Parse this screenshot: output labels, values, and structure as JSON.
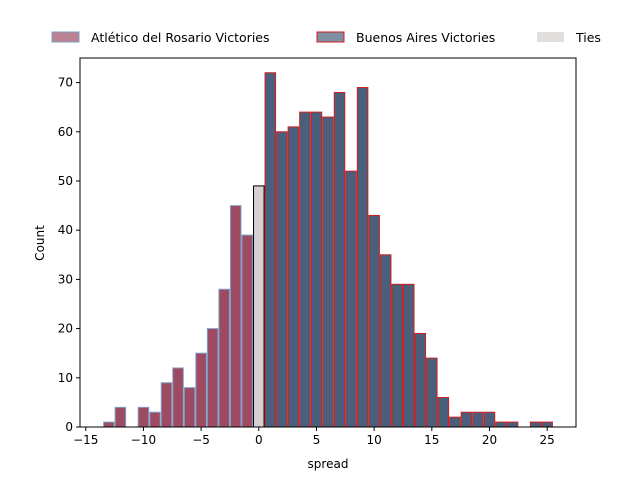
{
  "chart_data": {
    "type": "bar",
    "xlabel": "spread",
    "ylabel": "Count",
    "xlim": [
      -15.5,
      27.5
    ],
    "ylim": [
      0,
      75
    ],
    "xticks": [
      -15,
      -10,
      -5,
      0,
      5,
      10,
      15,
      20,
      25
    ],
    "yticks": [
      0,
      10,
      20,
      30,
      40,
      50,
      60,
      70
    ],
    "bin_width": 1,
    "grid": false,
    "legend_position": "top, outside plot, single row",
    "series": [
      {
        "name": "Atlético del Rosario Victories",
        "fill": "#9e4a62",
        "edge": "#7fa2c4",
        "x": [
          -13,
          -12,
          -10,
          -9,
          -8,
          -7,
          -6,
          -5,
          -4,
          -3,
          -2,
          -1
        ],
        "values": [
          1,
          4,
          4,
          3,
          9,
          12,
          8,
          15,
          20,
          28,
          45,
          39
        ]
      },
      {
        "name": "Buenos Aires Victories",
        "fill": "#4a5f7c",
        "edge": "#d11f1f",
        "x": [
          1,
          2,
          3,
          4,
          5,
          6,
          7,
          8,
          9,
          10,
          11,
          12,
          13,
          14,
          15,
          16,
          17,
          18,
          19,
          20,
          21,
          22,
          24,
          25
        ],
        "values": [
          72,
          60,
          61,
          64,
          64,
          63,
          68,
          52,
          69,
          43,
          35,
          29,
          29,
          19,
          14,
          6,
          2,
          3,
          3,
          3,
          1,
          1,
          1,
          1
        ]
      },
      {
        "name": "Ties",
        "fill": "#d6d0d0",
        "edge": "#000000",
        "x": [
          0
        ],
        "values": [
          49
        ]
      }
    ]
  }
}
